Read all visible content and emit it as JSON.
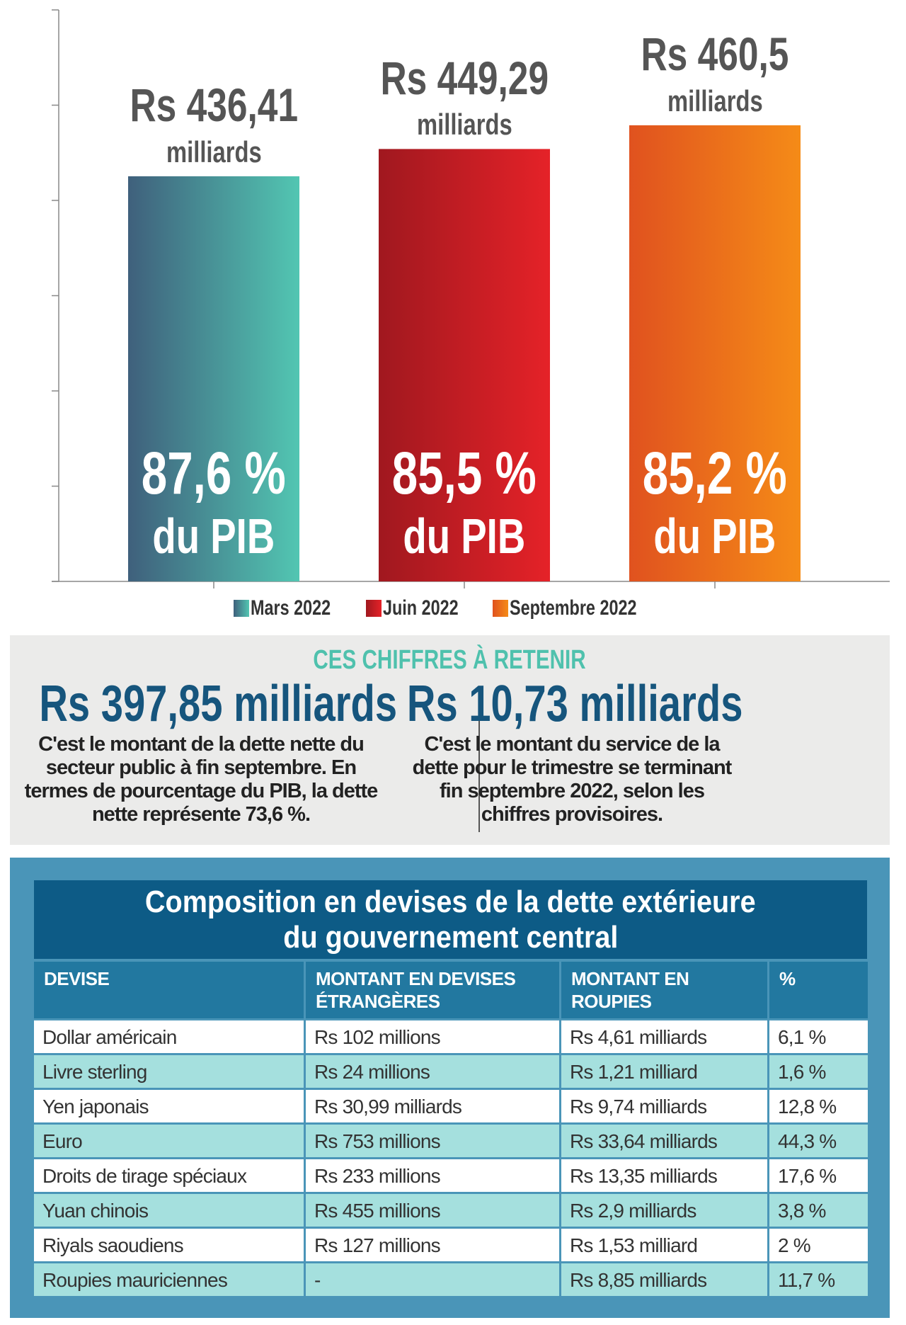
{
  "chart_data": {
    "type": "bar",
    "categories": [
      "Mars 2022",
      "Juin 2022",
      "Septembre 2022"
    ],
    "values": [
      436.41,
      449.29,
      460.5
    ],
    "value_labels": [
      "Rs 436,41",
      "Rs 449,29",
      "Rs 460,5"
    ],
    "unit_label": "milliards",
    "pct_labels": [
      "87,6 %",
      "85,5 %",
      "85,2 %"
    ],
    "pct_suffix": "du PIB",
    "ylim": [
      245,
      515
    ],
    "ytick_count": 7,
    "grid": false,
    "legend": "bottom",
    "colors": [
      {
        "from": "#3f607c",
        "to": "#52c6b2"
      },
      {
        "from": "#a0181f",
        "to": "#e52228"
      },
      {
        "from": "#e0521f",
        "to": "#f58b17"
      }
    ]
  },
  "retenir": {
    "title": "CES CHIFFRES À RETENIR",
    "left": {
      "value": "Rs 397,85 milliards",
      "lines": [
        "C'est le montant de la dette nette du",
        "secteur public à fin septembre. En",
        "termes de pourcentage du PIB, la dette",
        "nette représente 73,6 %."
      ]
    },
    "right": {
      "value": "Rs 10,73 milliards",
      "lines": [
        "C'est le montant du service de la",
        "dette pour le trimestre se terminant",
        "fin septembre 2022, selon les",
        "chiffres provisoires."
      ]
    }
  },
  "table": {
    "title_lines": [
      "Composition en devises de la dette extérieure",
      "du gouvernement central"
    ],
    "headers": [
      [
        "DEVISE",
        ""
      ],
      [
        "MONTANT EN DEVISES",
        "ÉTRANGÈRES"
      ],
      [
        "MONTANT EN",
        "ROUPIES"
      ],
      [
        "%",
        ""
      ]
    ],
    "rows": [
      [
        "Dollar américain",
        "Rs 102 millions",
        "Rs 4,61 milliards",
        "6,1 %"
      ],
      [
        "Livre sterling",
        "Rs 24 millions",
        "Rs 1,21 milliard",
        "1,6 %"
      ],
      [
        "Yen japonais",
        "Rs 30,99 milliards",
        "Rs 9,74 milliards",
        "12,8 %"
      ],
      [
        "Euro",
        "Rs 753 millions",
        "Rs 33,64 milliards",
        "44,3 %"
      ],
      [
        "Droits de tirage spéciaux",
        "Rs 233 millions",
        "Rs 13,35 milliards",
        "17,6 %"
      ],
      [
        "Yuan chinois",
        "Rs 455 millions",
        "Rs 2,9 milliards",
        "3,8 %"
      ],
      [
        "Riyals saoudiens",
        "Rs 127 millions",
        "Rs 1,53 milliard",
        "2 %"
      ],
      [
        "Roupies mauriciennes",
        "-",
        "Rs 8,85 milliards",
        "11,7 %"
      ]
    ],
    "row_colors": [
      "#ffffff",
      "#a5e0de"
    ]
  }
}
